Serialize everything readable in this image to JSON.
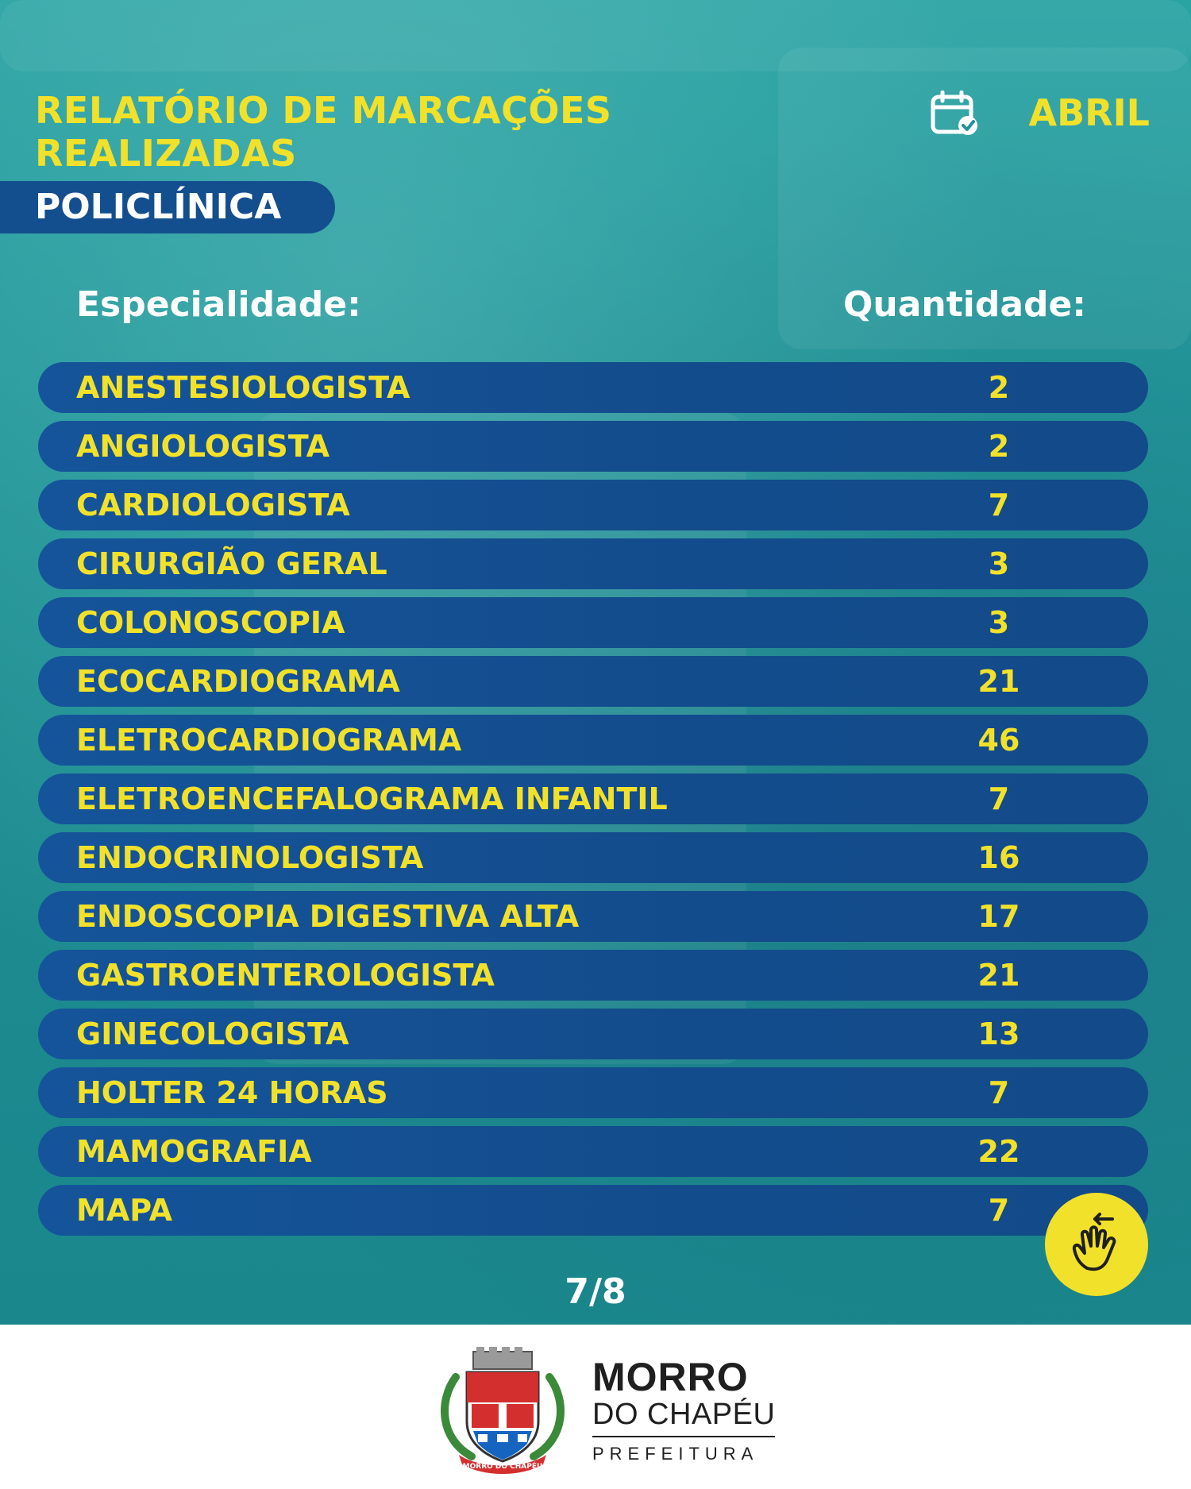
{
  "header": {
    "title_line1": "RELATÓRIO DE MARCAÇÕES",
    "title_line2": "REALIZADAS",
    "month": "ABRIL",
    "unit": "POLICLÍNICA"
  },
  "table": {
    "col_specialty": "Especialidade:",
    "col_quantity": "Quantidade:",
    "rows": [
      {
        "name": "ANESTESIOLOGISTA",
        "qty": "2"
      },
      {
        "name": "ANGIOLOGISTA",
        "qty": "2"
      },
      {
        "name": "CARDIOLOGISTA",
        "qty": "7"
      },
      {
        "name": "CIRURGIÃO GERAL",
        "qty": "3"
      },
      {
        "name": "COLONOSCOPIA",
        "qty": "3"
      },
      {
        "name": "ECOCARDIOGRAMA",
        "qty": "21"
      },
      {
        "name": "ELETROCARDIOGRAMA",
        "qty": "46"
      },
      {
        "name": "ELETROENCEFALOGRAMA INFANTIL",
        "qty": "7"
      },
      {
        "name": "ENDOCRINOLOGISTA",
        "qty": "16"
      },
      {
        "name": "ENDOSCOPIA DIGESTIVA ALTA",
        "qty": "17"
      },
      {
        "name": "GASTROENTEROLOGISTA",
        "qty": "21"
      },
      {
        "name": "GINECOLOGISTA",
        "qty": "13"
      },
      {
        "name": "HOLTER 24 HORAS",
        "qty": "7"
      },
      {
        "name": "MAMOGRAFIA",
        "qty": "22"
      },
      {
        "name": "MAPA",
        "qty": "7"
      }
    ]
  },
  "pagination": "7/8",
  "icons": {
    "calendar": "calendar-check-icon",
    "swipe": "swipe-hand-icon"
  },
  "footer": {
    "brand_line1": "MORRO",
    "brand_line2": "DO CHAPÉU",
    "brand_line3": "PREFEITURA",
    "crest_text": "MORRO DO CHAPÉU"
  },
  "colors": {
    "background": "#1f9396",
    "accent_yellow": "#f2e12a",
    "row_blue": "#134c8c"
  }
}
